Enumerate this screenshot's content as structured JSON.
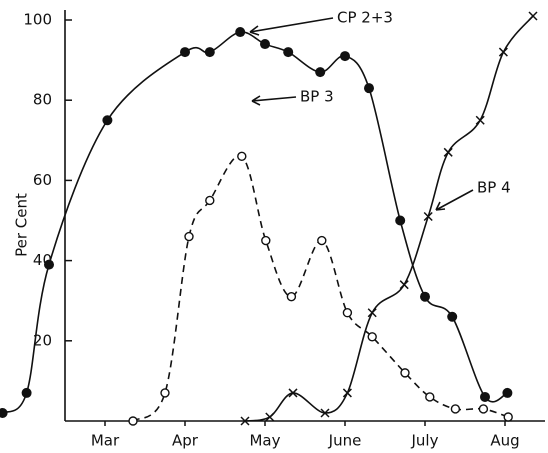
{
  "chart_data": {
    "type": "line",
    "y_label": "Per Cent",
    "xlim": [
      -0.8,
      6.0
    ],
    "xticks": [
      {
        "value": 0.5,
        "label": "Mar"
      },
      {
        "value": 1.5,
        "label": "Apr"
      },
      {
        "value": 2.5,
        "label": "May"
      },
      {
        "value": 3.5,
        "label": "June"
      },
      {
        "value": 4.5,
        "label": "July"
      },
      {
        "value": 5.5,
        "label": "Aug"
      }
    ],
    "ylim": [
      0,
      100
    ],
    "yticks": [
      20,
      40,
      60,
      80,
      100
    ],
    "series": [
      {
        "name": "CP 2+3",
        "color": "#111111",
        "marker": "filled-circle",
        "dashed": false,
        "x": [
          -0.78,
          -0.48,
          -0.2,
          0.53,
          1.5,
          1.81,
          2.19,
          2.5,
          2.79,
          3.19,
          3.5,
          3.8,
          4.19,
          4.5,
          4.84,
          5.25,
          5.53
        ],
        "values": [
          2,
          7,
          39,
          75,
          92,
          92,
          97,
          94,
          92,
          87,
          91,
          83,
          50,
          31,
          26,
          6,
          7
        ]
      },
      {
        "name": "BP 3",
        "color": "#111111",
        "marker": "open-circle",
        "dashed": true,
        "x": [
          0.85,
          1.25,
          1.55,
          1.81,
          2.21,
          2.51,
          2.83,
          3.21,
          3.53,
          3.84,
          4.25,
          4.56,
          4.88,
          5.23,
          5.54
        ],
        "values": [
          0,
          7,
          46,
          55,
          66,
          45,
          31,
          45,
          27,
          21,
          12,
          6,
          3,
          3,
          1
        ]
      },
      {
        "name": "BP 4",
        "color": "#111111",
        "marker": "cross",
        "dashed": false,
        "x": [
          2.25,
          2.56,
          2.85,
          3.25,
          3.53,
          3.84,
          4.24,
          4.54,
          4.79,
          5.19,
          5.48,
          5.85
        ],
        "values": [
          0,
          1,
          7,
          2,
          7,
          27,
          34,
          51,
          67,
          75,
          92,
          101
        ]
      }
    ]
  }
}
